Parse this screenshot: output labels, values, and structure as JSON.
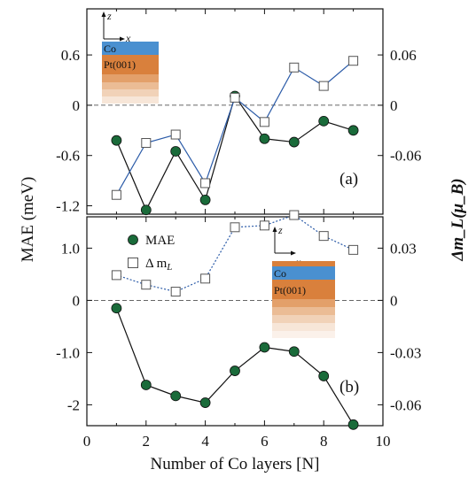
{
  "chart_data": [
    {
      "panel": "(a)",
      "type": "line",
      "xlabel": "",
      "ylabel_left": "",
      "ylabel_right": "",
      "xlim": [
        0,
        10
      ],
      "ylim_left": [
        -1.3,
        1.15
      ],
      "ylim_right": [
        -0.13,
        0.115
      ],
      "left_ticks": [
        "0.6",
        "0",
        "-0.6",
        "-1.2"
      ],
      "right_ticks": [
        "0.06",
        "0",
        "-0.06"
      ],
      "series": [
        {
          "axis": "left",
          "marker": "filled-circle",
          "line_color": "#111111",
          "marker_color": "#1a6b3a",
          "x": [
            1,
            2,
            3,
            4,
            5,
            6,
            7,
            8,
            9
          ],
          "values": [
            -0.42,
            -1.25,
            -0.55,
            -1.13,
            0.11,
            -0.4,
            -0.44,
            -0.19,
            -0.3
          ]
        },
        {
          "axis": "right",
          "marker": "open-square",
          "line_color": "#2b5ba8",
          "marker_color": "#555555",
          "x": [
            1,
            2,
            3,
            4,
            5,
            6,
            7,
            8,
            9
          ],
          "values": [
            -0.107,
            -0.045,
            -0.035,
            -0.093,
            0.009,
            -0.02,
            0.045,
            0.023,
            0.053
          ]
        }
      ],
      "inset": {
        "labels": [
          "Co",
          "Pt(001)"
        ],
        "axes": [
          "z",
          "x"
        ]
      }
    },
    {
      "panel": "(b)",
      "type": "line",
      "xlabel": "Number of Co layers [N]",
      "ylabel_left": "MAE (meV)",
      "ylabel_right": "Δm_L(μ_B)",
      "xlim": [
        0,
        10
      ],
      "ylim_left": [
        -2.4,
        1.6
      ],
      "ylim_right": [
        -0.072,
        0.048
      ],
      "x_ticks": [
        "0",
        "2",
        "4",
        "6",
        "8",
        "10"
      ],
      "left_ticks": [
        "1.0",
        "0",
        "-1.0",
        "-2"
      ],
      "right_ticks": [
        "0.03",
        "0",
        "-0.03",
        "-0.06"
      ],
      "legend": [
        {
          "label": "MAE",
          "marker": "filled-circle"
        },
        {
          "label": "Δ m",
          "sub": "L",
          "marker": "open-square"
        }
      ],
      "series": [
        {
          "axis": "left",
          "marker": "filled-circle",
          "line_color": "#111111",
          "marker_color": "#1a6b3a",
          "x": [
            1,
            2,
            3,
            4,
            5,
            6,
            7,
            8,
            9
          ],
          "values": [
            -0.15,
            -1.62,
            -1.83,
            -1.96,
            -1.35,
            -0.9,
            -0.98,
            -1.45,
            -2.38
          ]
        },
        {
          "axis": "right",
          "marker": "open-square",
          "line_color": "#2b5ba8",
          "marker_color": "#555555",
          "x": [
            1,
            2,
            3,
            4,
            5,
            6,
            7,
            8,
            9
          ],
          "values": [
            0.0145,
            0.009,
            0.005,
            0.0125,
            0.042,
            0.043,
            0.049,
            0.037,
            0.029
          ]
        }
      ],
      "inset": {
        "labels": [
          "Co",
          "Pt(001)"
        ],
        "axes": [
          "z",
          "x"
        ]
      }
    }
  ],
  "colors": {
    "co_layer": "#4a90d0",
    "pt_layer": "#d9803c",
    "mae_marker": "#1a6b3a",
    "dm_line": "#2b5ba8"
  }
}
